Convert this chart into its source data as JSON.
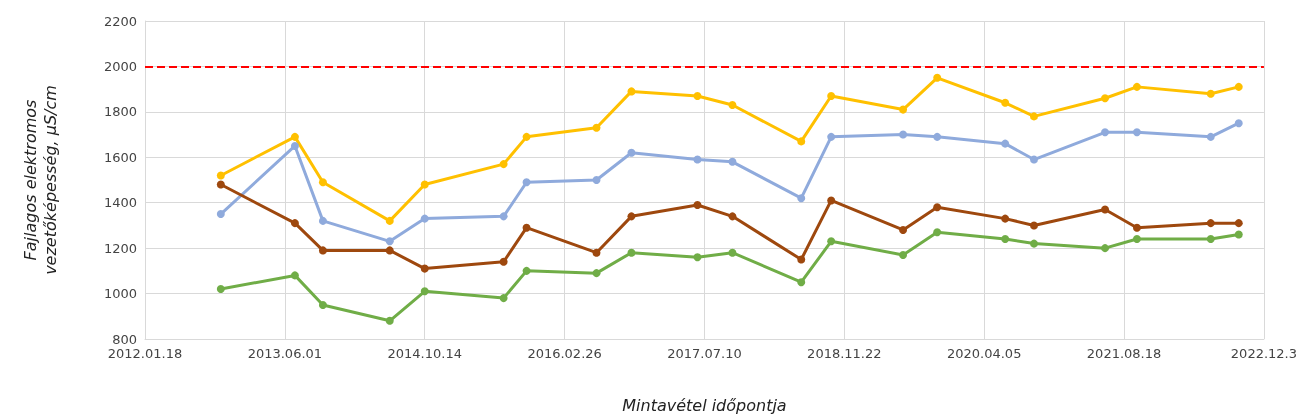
{
  "chart_data": {
    "type": "line",
    "xlabel": "Mintavétel időpontja",
    "ylabel": "Fajlagos elektromos\nvezetőképesség, µS/cm",
    "x": [
      "2012-10-15",
      "2013-07-07",
      "2013-10-15",
      "2014-06-11",
      "2014-10-14",
      "2015-07-23",
      "2015-10-13",
      "2016-06-19",
      "2016-10-22",
      "2017-06-15",
      "2017-10-18",
      "2018-06-21",
      "2018-10-06",
      "2019-06-20",
      "2019-10-20",
      "2020-06-19",
      "2020-09-30",
      "2021-06-11",
      "2021-10-03",
      "2022-06-24",
      "2022-10-02"
    ],
    "series": [
      {
        "color": "#ffc000",
        "values": [
          1520,
          1690,
          1490,
          1320,
          1480,
          1570,
          1690,
          1730,
          1890,
          1870,
          1830,
          1670,
          1870,
          1810,
          1950,
          1840,
          1780,
          1860,
          1910,
          1880,
          1910
        ]
      },
      {
        "color": "#8faadc",
        "values": [
          1350,
          1650,
          1320,
          1230,
          1330,
          1340,
          1490,
          1500,
          1620,
          1590,
          1580,
          1420,
          1690,
          1700,
          1690,
          1660,
          1590,
          1710,
          1710,
          1690,
          1750
        ]
      },
      {
        "color": "#9e480e",
        "values": [
          1480,
          1310,
          1190,
          1190,
          1110,
          1140,
          1290,
          1180,
          1340,
          1390,
          1340,
          1150,
          1410,
          1280,
          1380,
          1330,
          1300,
          1370,
          1290,
          1310,
          1310
        ]
      },
      {
        "color": "#70ad47",
        "values": [
          1020,
          1080,
          950,
          880,
          1010,
          980,
          1100,
          1090,
          1180,
          1160,
          1180,
          1050,
          1230,
          1170,
          1270,
          1240,
          1220,
          1200,
          1240,
          1240,
          1260
        ]
      }
    ],
    "xlim": [
      "2012-01-18",
      "2022-12-31"
    ],
    "xticks": [
      {
        "value": "2012-01-18",
        "label": "2012.01.18"
      },
      {
        "value": "2013-06-01",
        "label": "2013.06.01"
      },
      {
        "value": "2014-10-14",
        "label": "2014.10.14"
      },
      {
        "value": "2016-02-26",
        "label": "2016.02.26"
      },
      {
        "value": "2017-07-10",
        "label": "2017.07.10"
      },
      {
        "value": "2018-11-22",
        "label": "2018.11.22"
      },
      {
        "value": "2020-04-05",
        "label": "2020.04.05"
      },
      {
        "value": "2021-08-18",
        "label": "2021.08.18"
      },
      {
        "value": "2022-12-31",
        "label": "2022.12.3"
      }
    ],
    "ylim": [
      800,
      2200
    ],
    "yticks": [
      800,
      1000,
      1200,
      1400,
      1600,
      1800,
      2000,
      2200
    ],
    "ref_lines": [
      {
        "axis": "y",
        "value": 2000,
        "color": "#ff0000",
        "line_style": "dashed"
      }
    ],
    "grid": true,
    "marker": "circle",
    "line_style": "solid"
  }
}
